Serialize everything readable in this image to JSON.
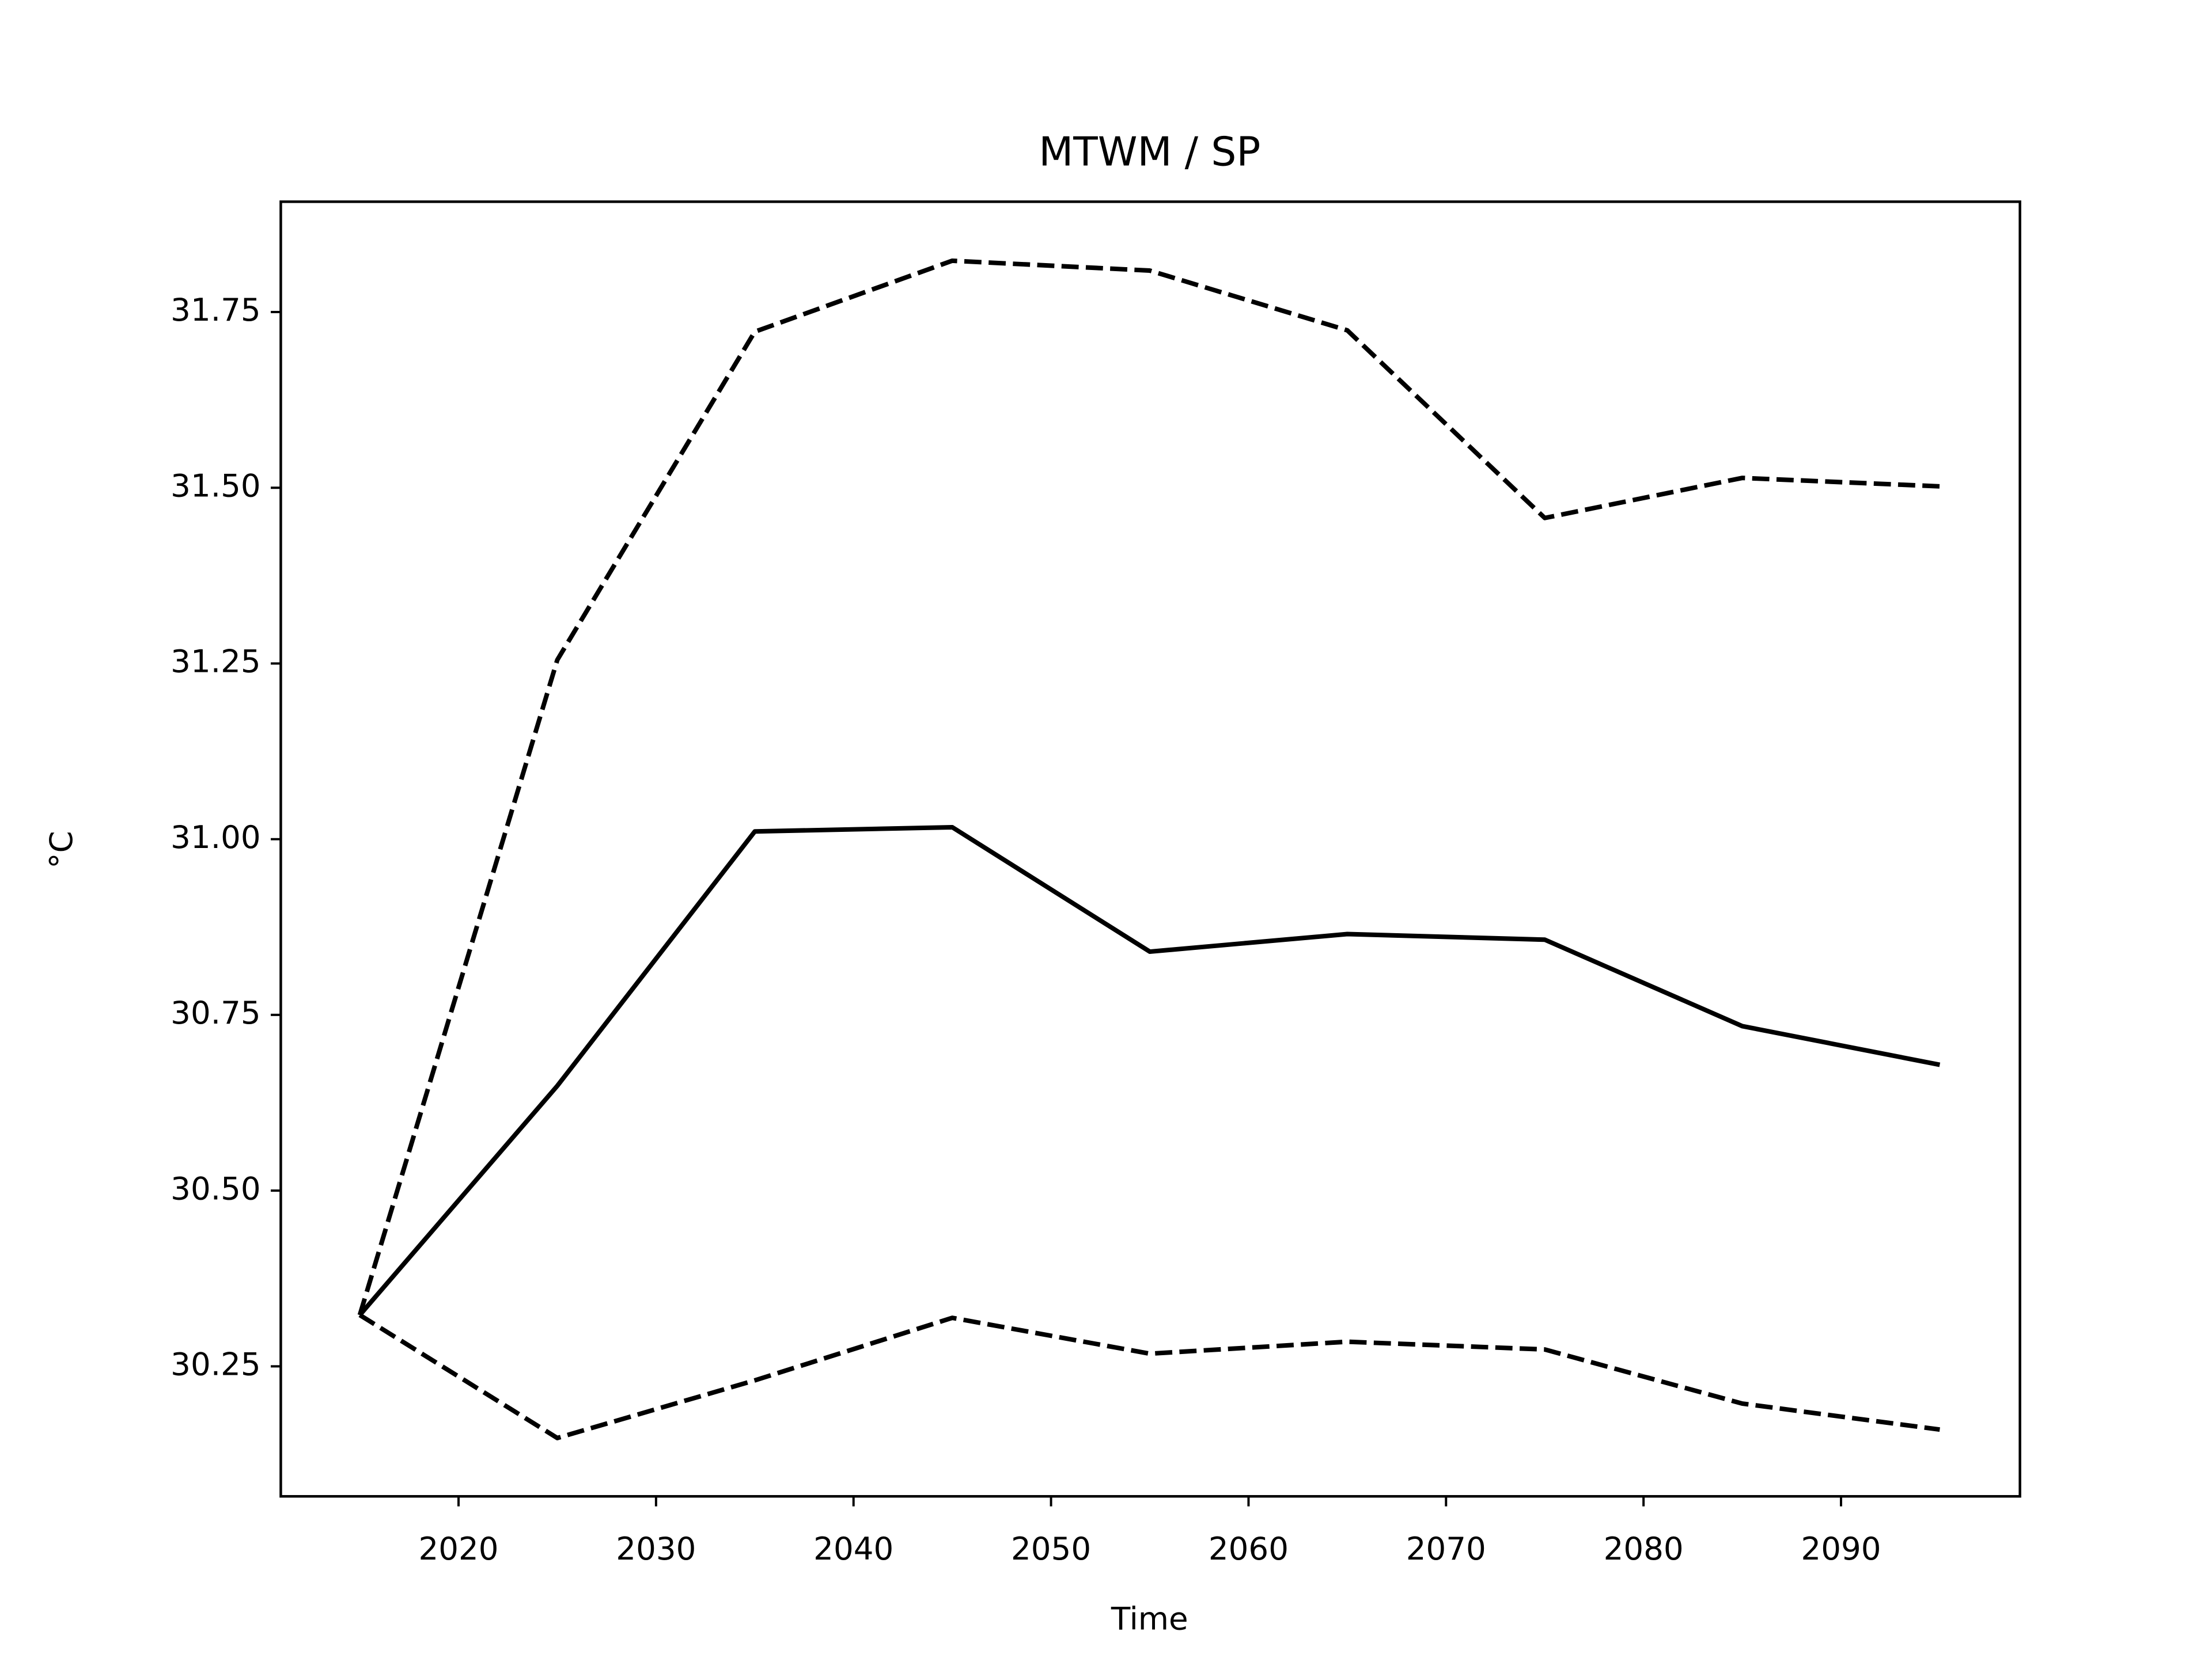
{
  "chart_data": {
    "type": "line",
    "title": "MTWM / SP",
    "x_label": "Time",
    "y_label": "°C",
    "x": [
      2015,
      2025,
      2035,
      2045,
      2055,
      2065,
      2075,
      2085,
      2095
    ],
    "series": [
      {
        "color": "#000000",
        "linestyle": "solid",
        "values": [
          30.323,
          30.649,
          31.011,
          31.017,
          30.84,
          30.865,
          30.857,
          30.734,
          30.679
        ]
      },
      {
        "color": "#000000",
        "linestyle": "dashed",
        "values": [
          30.323,
          31.255,
          31.722,
          31.823,
          31.809,
          31.724,
          31.457,
          31.514,
          31.502
        ]
      },
      {
        "color": "#000000",
        "linestyle": "dashed",
        "values": [
          30.323,
          30.148,
          30.23,
          30.319,
          30.268,
          30.285,
          30.274,
          30.197,
          30.16
        ]
      }
    ],
    "xlim": [
      2011.0,
      2099.06
    ],
    "xticks": [
      2020,
      2030,
      2040,
      2050,
      2060,
      2070,
      2080,
      2090
    ],
    "ylim": [
      30.065,
      31.907
    ],
    "yticks": [
      30.25,
      {
        "value": 30.5,
        "label": "30.50"
      },
      30.75,
      {
        "value": 31.0,
        "label": "31.00"
      },
      31.25,
      {
        "value": 31.5,
        "label": "31.50"
      },
      31.75
    ],
    "grid": false
  }
}
